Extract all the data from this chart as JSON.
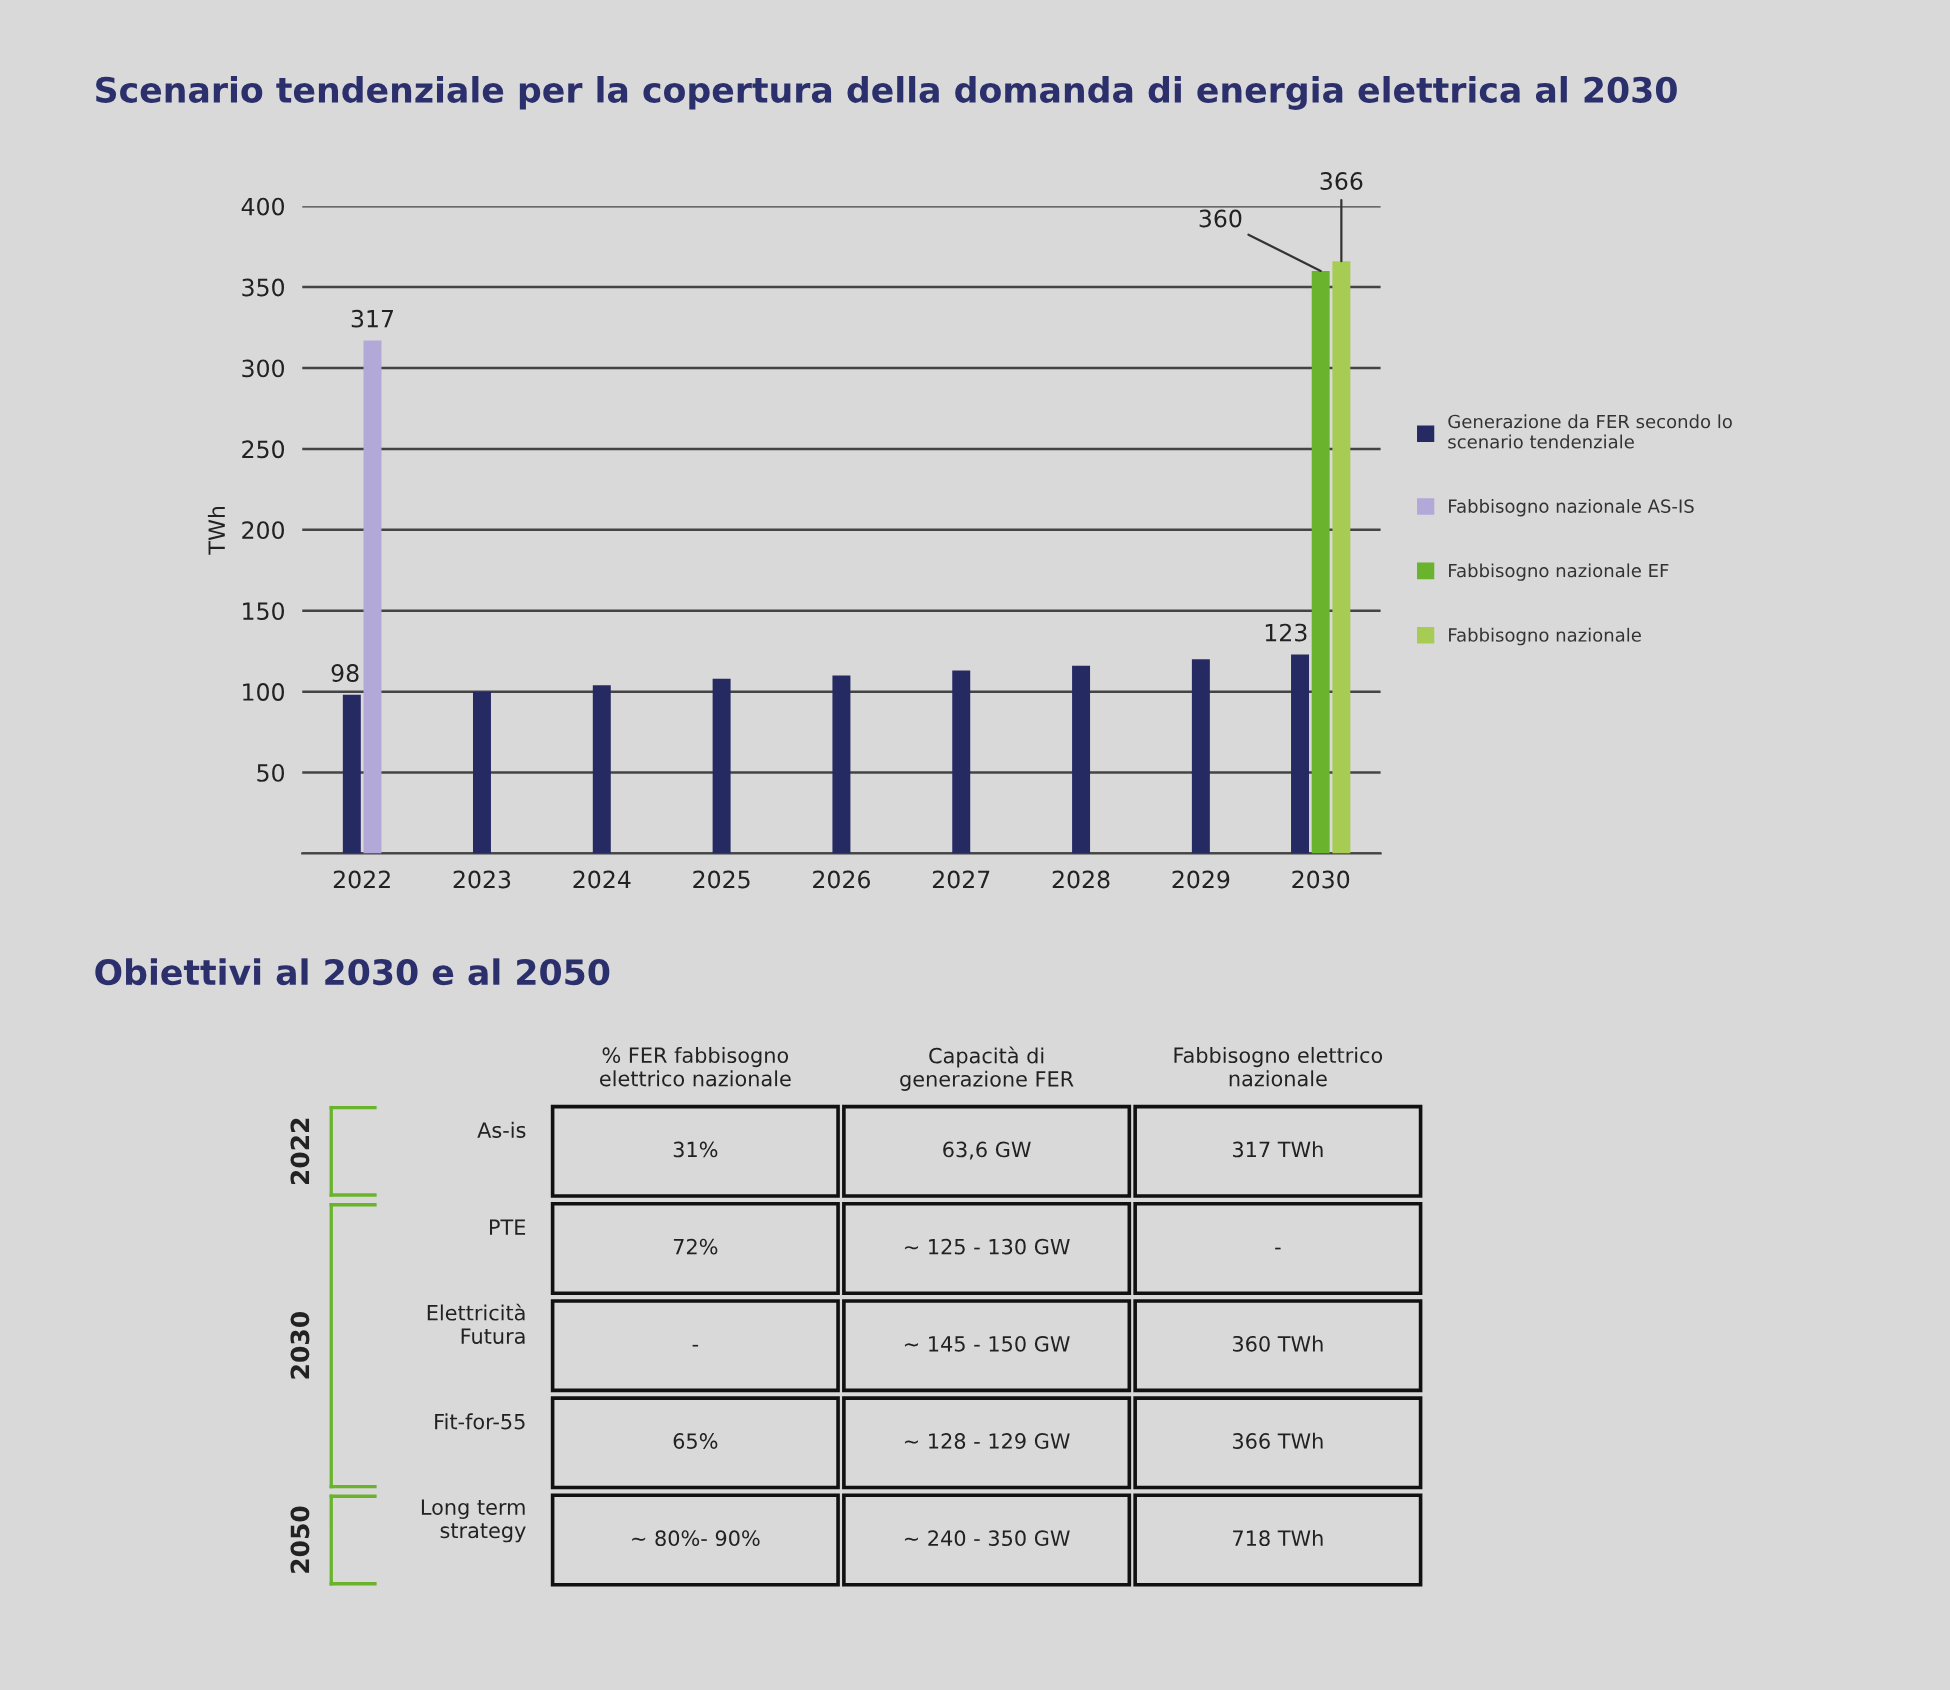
{
  "chart_data": [
    {
      "type": "bar",
      "title": "Scenario tendenziale per la copertura della domanda di energia elettrica al 2030",
      "ylabel": "TWh",
      "categories": [
        "2022",
        "2023",
        "2024",
        "2025",
        "2026",
        "2027",
        "2028",
        "2029",
        "2030"
      ],
      "series": [
        {
          "name": "Generazione da FER secondo lo\nscenario tendenziale",
          "color": "#262a63",
          "values": [
            98,
            100,
            104,
            108,
            110,
            113,
            116,
            120,
            123
          ],
          "value_labels": [
            "98",
            null,
            null,
            null,
            null,
            null,
            null,
            null,
            "123"
          ]
        },
        {
          "name": "Fabbisogno nazionale AS-IS",
          "color": "#b3a9d9",
          "values": [
            317,
            null,
            null,
            null,
            null,
            null,
            null,
            null,
            null
          ],
          "value_labels": [
            "317",
            null,
            null,
            null,
            null,
            null,
            null,
            null,
            null
          ]
        },
        {
          "name": "Fabbisogno nazionale EF",
          "color": "#6ab42d",
          "values": [
            null,
            null,
            null,
            null,
            null,
            null,
            null,
            null,
            360
          ],
          "value_labels": [
            null,
            null,
            null,
            null,
            null,
            null,
            null,
            null,
            "360"
          ]
        },
        {
          "name": "Fabbisogno nazionale",
          "color": "#a6cc54",
          "values": [
            null,
            null,
            null,
            null,
            null,
            null,
            null,
            null,
            366
          ],
          "value_labels": [
            null,
            null,
            null,
            null,
            null,
            null,
            null,
            null,
            "366"
          ]
        }
      ],
      "ylim": [
        0,
        400
      ],
      "yticks": [
        {
          "value": 0,
          "label": null
        },
        50,
        100,
        150,
        200,
        250,
        300,
        350,
        400
      ],
      "grid": "y",
      "legend": "right"
    },
    {
      "type": "other",
      "title": "Obiettivi al 2030 e al 2050",
      "categories": [
        "% FER fabbisogno\nelettrico nazionale",
        "Capacità di\ngenerazione FER",
        "Fabbisogno elettrico\nnazionale"
      ],
      "y_categories": [
        "As-is",
        "PTE",
        "Elettricità\nFutura",
        "Fit-for-55",
        "Long term\nstrategy"
      ],
      "y2_categories": [
        "2022",
        "2030",
        null,
        null,
        "2050"
      ],
      "cell_labels": [
        [
          "31%",
          "63,6 GW",
          "317 TWh"
        ],
        [
          "72%",
          "~ 125 - 130 GW",
          "-"
        ],
        [
          "-",
          "~ 145 - 150 GW",
          "360 TWh"
        ],
        [
          "65%",
          "~ 128 - 129 GW",
          "366 TWh"
        ],
        [
          "~ 80%- 90%",
          "~ 240 - 350 GW",
          "718 TWh"
        ]
      ]
    }
  ]
}
